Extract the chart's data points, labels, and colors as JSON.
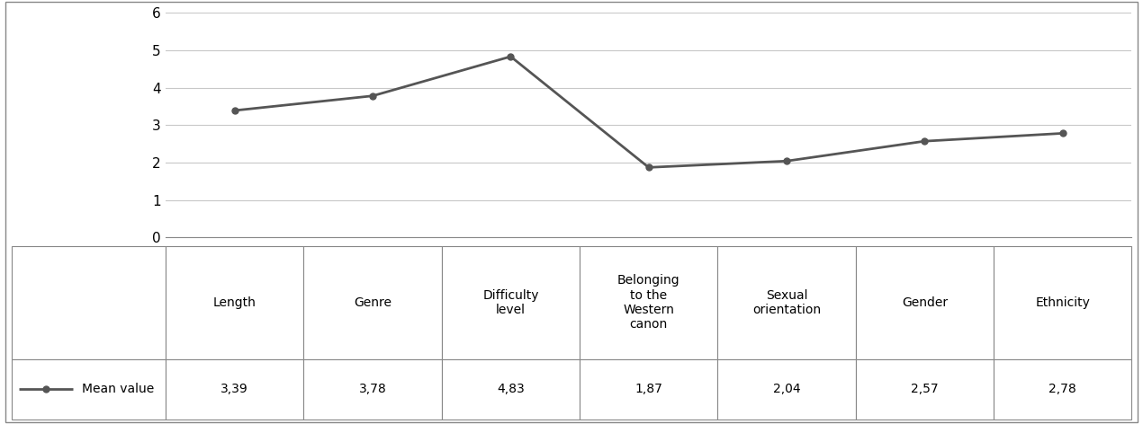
{
  "categories": [
    "Length",
    "Genre",
    "Difficulty\nlevel",
    "Belonging\nto the\nWestern\ncanon",
    "Sexual\norientation",
    "Gender",
    "Ethnicity"
  ],
  "values": [
    3.39,
    3.78,
    4.83,
    1.87,
    2.04,
    2.57,
    2.78
  ],
  "value_labels": [
    "3,39",
    "3,78",
    "4,83",
    "1,87",
    "2,04",
    "2,57",
    "2,78"
  ],
  "line_color": "#555555",
  "line_width": 2.0,
  "marker": "o",
  "marker_size": 5,
  "ylim": [
    0,
    6
  ],
  "yticks": [
    0,
    1,
    2,
    3,
    4,
    5,
    6
  ],
  "legend_label": "Mean value",
  "grid_color": "#c8c8c8",
  "background_color": "#ffffff",
  "table_border_color": "#555555",
  "font_size": 11,
  "table_font_size": 10
}
